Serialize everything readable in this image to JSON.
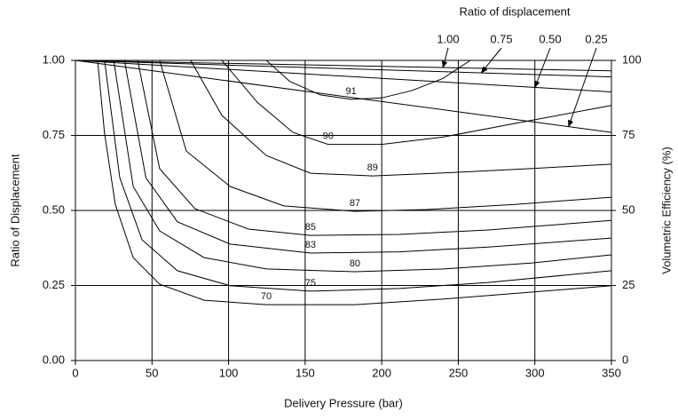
{
  "chart_data": {
    "type": "line",
    "x_label": "Delivery Pressure (bar)",
    "y_label": "Ratio of Displacement",
    "y2_label": "Volumetric Efficiency (%)",
    "legend_title": "Ratio of displacement",
    "xlim": [
      0,
      350
    ],
    "xticks": [
      0,
      50,
      100,
      150,
      200,
      250,
      300,
      350
    ],
    "ylim": [
      0,
      1
    ],
    "yticks": [
      {
        "value": 0,
        "label": "0.00"
      },
      {
        "value": 0.25,
        "label": "0.25"
      },
      {
        "value": 0.5,
        "label": "0.50"
      },
      {
        "value": 0.75,
        "label": "0.75"
      },
      {
        "value": 1,
        "label": "1.00"
      }
    ],
    "y2lim": [
      0,
      100
    ],
    "y2ticks": [
      0,
      25,
      50,
      75,
      100
    ],
    "grid": true,
    "series": [
      {
        "name": "91",
        "color": "#000000",
        "x": [
          124.6,
          140,
          160,
          180,
          200,
          220,
          240,
          257.8
        ],
        "values": [
          1.0,
          0.93,
          0.885,
          0.87,
          0.875,
          0.9,
          0.94,
          1.0
        ]
      },
      {
        "name": "90",
        "color": "#000000",
        "x": [
          95.6,
          118.8,
          142,
          165,
          200,
          240.5,
          287,
          350
        ],
        "values": [
          1.0,
          0.86,
          0.76,
          0.72,
          0.72,
          0.745,
          0.79,
          0.85
        ]
      },
      {
        "name": "89",
        "color": "#000000",
        "x": [
          75.3,
          95.6,
          124.6,
          153.5,
          194,
          240.5,
          298.5,
          350
        ],
        "values": [
          1.0,
          0.817,
          0.683,
          0.624,
          0.615,
          0.625,
          0.64,
          0.654
        ]
      },
      {
        "name": "87",
        "color": "#000000",
        "x": [
          55,
          72.4,
          101,
          136,
          182.5,
          229,
          287,
          350
        ],
        "values": [
          1.0,
          0.698,
          0.58,
          0.515,
          0.497,
          0.503,
          0.52,
          0.544
        ]
      },
      {
        "name": "85",
        "color": "#000000",
        "x": [
          40.6,
          55,
          78,
          113,
          153.5,
          211.5,
          269.5,
          350
        ],
        "values": [
          1.0,
          0.639,
          0.506,
          0.438,
          0.417,
          0.42,
          0.435,
          0.467
        ]
      },
      {
        "name": "83",
        "color": "#000000",
        "x": [
          32,
          46,
          66.6,
          101,
          153.5,
          211.5,
          269.5,
          350
        ],
        "values": [
          1.0,
          0.609,
          0.462,
          0.388,
          0.358,
          0.362,
          0.378,
          0.408
        ]
      },
      {
        "name": "80",
        "color": "#000000",
        "x": [
          25,
          37.7,
          55,
          84,
          124.6,
          182.5,
          240.5,
          298.5,
          350
        ],
        "values": [
          1.0,
          0.58,
          0.432,
          0.343,
          0.305,
          0.296,
          0.305,
          0.325,
          0.352
        ]
      },
      {
        "name": "75",
        "color": "#000000",
        "x": [
          19,
          29,
          43.5,
          66.6,
          101,
          153.5,
          211.5,
          269.5,
          350
        ],
        "values": [
          1.0,
          0.609,
          0.402,
          0.299,
          0.249,
          0.231,
          0.24,
          0.26,
          0.299
        ]
      },
      {
        "name": "70",
        "color": "#000000",
        "x": [
          14.5,
          19,
          26,
          37.7,
          55,
          84,
          124.6,
          182.5,
          240.5,
          298.5,
          350
        ],
        "values": [
          1.0,
          0.757,
          0.52,
          0.343,
          0.254,
          0.201,
          0.186,
          0.186,
          0.205,
          0.228,
          0.249
        ]
      },
      {
        "name": "1.00",
        "color": "#000000",
        "axis": "y2",
        "x": [
          0,
          350
        ],
        "values": [
          100,
          96.5
        ]
      },
      {
        "name": "0.75",
        "color": "#000000",
        "axis": "y2",
        "x": [
          0,
          350
        ],
        "values": [
          100,
          94.5
        ]
      },
      {
        "name": "0.50",
        "color": "#000000",
        "axis": "y2",
        "x": [
          0,
          350
        ],
        "values": [
          100,
          89.5
        ]
      },
      {
        "name": "0.25",
        "color": "#000000",
        "axis": "y2",
        "x": [
          0,
          350
        ],
        "values": [
          100,
          76
        ]
      }
    ]
  }
}
